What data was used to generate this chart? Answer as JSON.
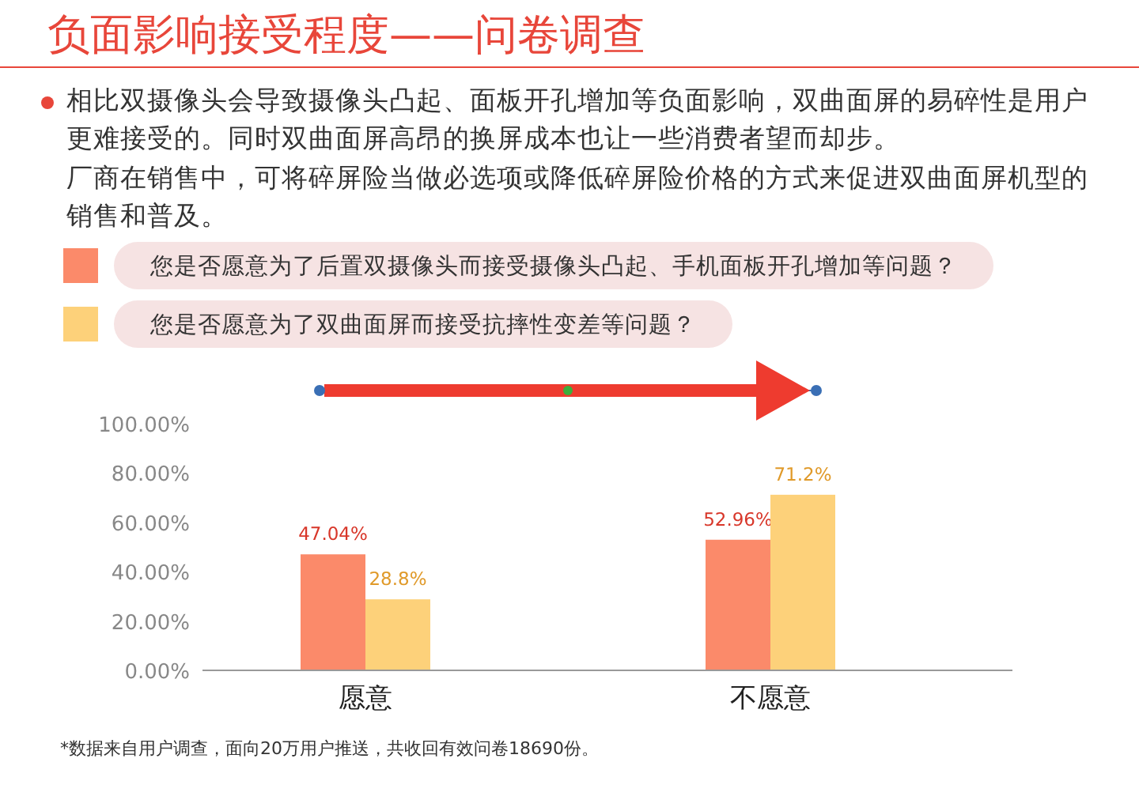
{
  "chart_data": {
    "type": "bar",
    "title": "负面影响接受程度——问卷调查",
    "annotations": [
      "相比双摄像头会导致摄像头凸起、面板开孔增加等负面影响，双曲面屏的易碎性是用户更难接受的。同时双曲面屏高昂的换屏成本也让一些消费者望而却步。",
      "厂商在销售中，可将碎屏险当做必选项或降低碎屏险价格的方式来促进双曲面屏机型的销售和普及。",
      "*数据来自用户调查，面向20万用户推送，共收回有效问卷18690份。"
    ],
    "categories": [
      "愿意",
      "不愿意"
    ],
    "series": [
      {
        "name": "您是否愿意为了后置双摄像头而接受摄像头凸起、手机面板开孔增加等问题？",
        "color": "#fb8a6a",
        "values": [
          47.04,
          52.96
        ],
        "value_labels": [
          "47.04%",
          "52.96%"
        ]
      },
      {
        "name": "您是否愿意为了双曲面屏而接受抗摔性变差等问题？",
        "color": "#fdd17a",
        "values": [
          28.8,
          71.2
        ],
        "value_labels": [
          "28.8%",
          "71.2%"
        ]
      }
    ],
    "ylim": [
      0,
      100
    ],
    "yticks": [
      {
        "value": 0,
        "label": "0.00%"
      },
      {
        "value": 20,
        "label": "20.00%"
      },
      {
        "value": 40,
        "label": "40.00%"
      },
      {
        "value": 60,
        "label": "60.00%"
      },
      {
        "value": 80,
        "label": "80.00%"
      },
      {
        "value": 100,
        "label": "100.00%"
      }
    ],
    "legend": "top",
    "grid": false
  }
}
